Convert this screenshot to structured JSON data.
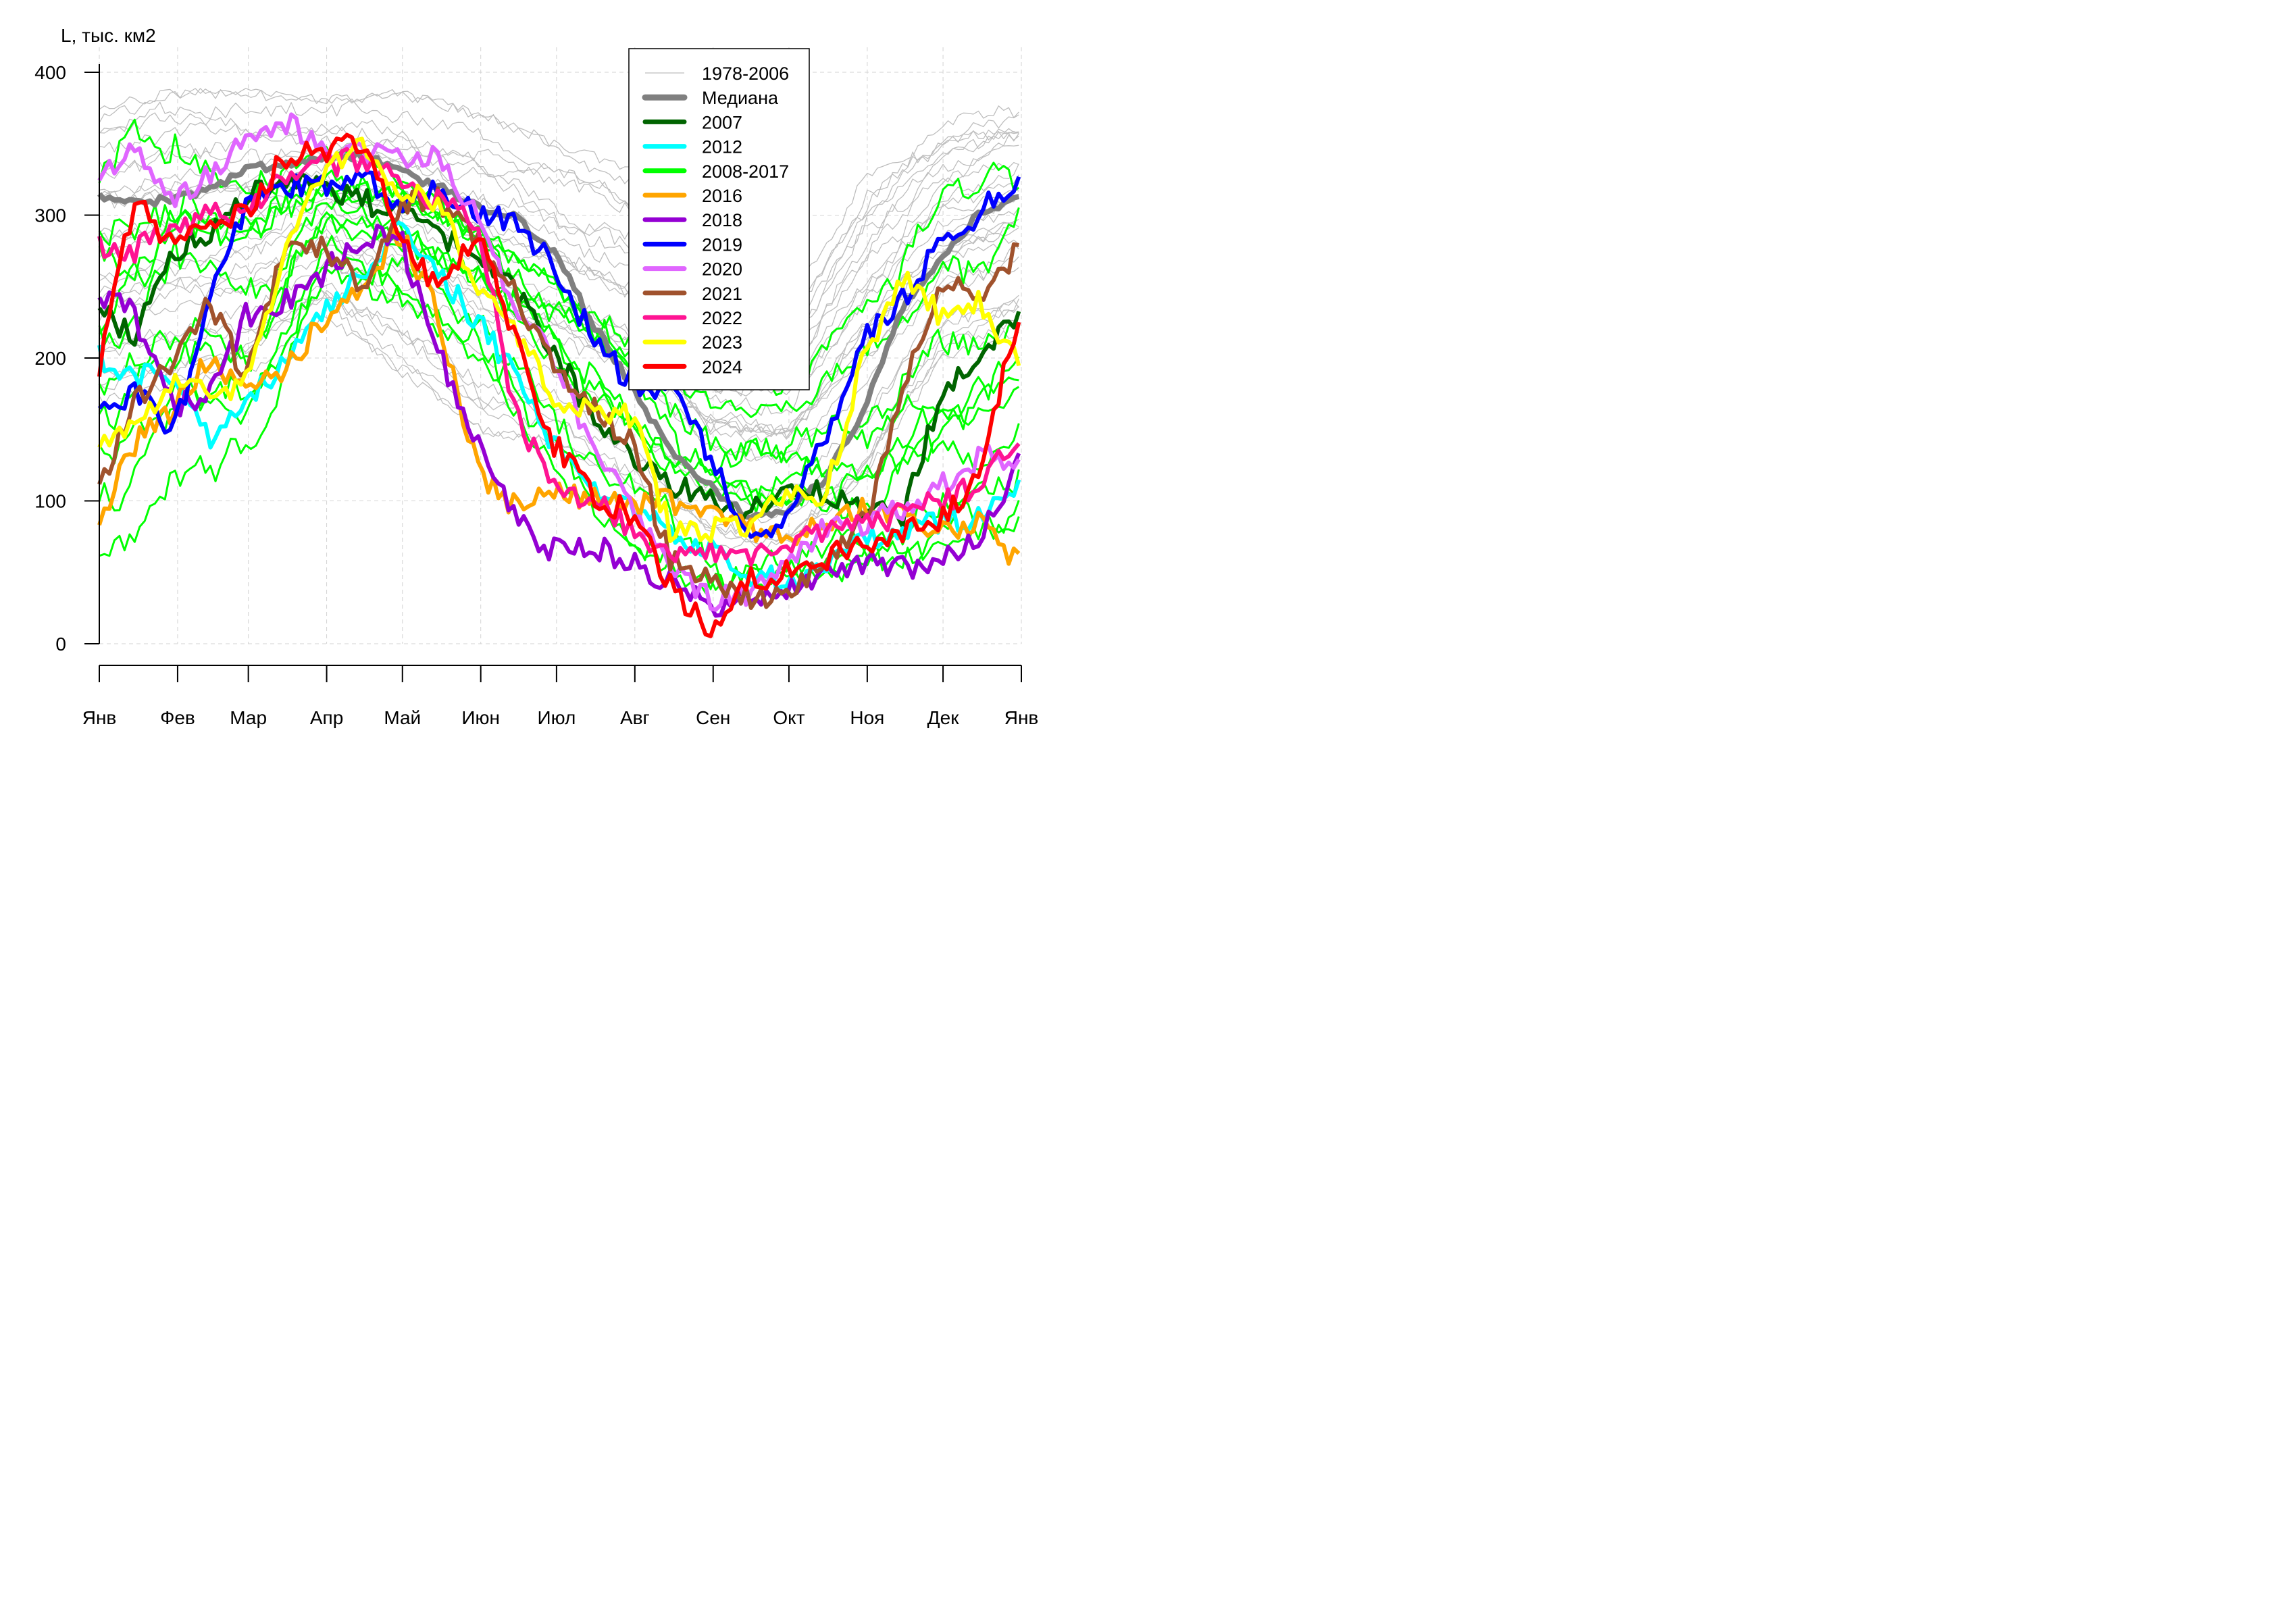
{
  "chart_data": {
    "type": "line",
    "ylabel": "L, тыс. км2",
    "ylim": [
      0,
      400
    ],
    "yticks": [
      0,
      100,
      200,
      300,
      400
    ],
    "x_tick_labels": [
      "Янв",
      "Фев",
      "Мар",
      "Апр",
      "Май",
      "Июн",
      "Июл",
      "Авг",
      "Сен",
      "Окт",
      "Ноя",
      "Дек",
      "Янв"
    ],
    "x_unit": "day of year",
    "xlim": [
      1,
      366
    ],
    "grid": true,
    "legend_position": "top-center",
    "series": [
      {
        "name": "1978-2006",
        "color": "#bebebe",
        "style": "thin",
        "x": [
          1,
          30,
          60,
          91,
          121,
          152,
          182,
          213,
          244,
          274,
          305,
          335,
          366
        ],
        "low": [
          170,
          180,
          190,
          230,
          190,
          150,
          140,
          110,
          70,
          70,
          120,
          200,
          220
        ],
        "high": [
          375,
          385,
          385,
          380,
          385,
          370,
          350,
          330,
          250,
          240,
          330,
          370,
          385
        ]
      },
      {
        "name": "Медиана",
        "color": "#808080",
        "x": [
          1,
          15,
          31,
          45,
          59,
          74,
          90,
          105,
          120,
          135,
          151,
          166,
          181,
          196,
          212,
          227,
          243,
          258,
          273,
          288,
          304,
          319,
          334,
          349,
          366
        ],
        "y": [
          312,
          308,
          312,
          318,
          332,
          336,
          340,
          342,
          330,
          320,
          305,
          298,
          275,
          225,
          180,
          135,
          110,
          88,
          92,
          115,
          165,
          235,
          270,
          300,
          312
        ]
      },
      {
        "name": "2007",
        "color": "#006400",
        "x": [
          1,
          15,
          31,
          45,
          59,
          74,
          90,
          105,
          120,
          135,
          151,
          166,
          181,
          196,
          212,
          227,
          243,
          258,
          273,
          288,
          304,
          319,
          334,
          349,
          366
        ],
        "y": [
          235,
          215,
          275,
          290,
          315,
          325,
          320,
          310,
          300,
          285,
          270,
          245,
          205,
          160,
          130,
          110,
          105,
          88,
          115,
          105,
          95,
          90,
          170,
          200,
          230
        ]
      },
      {
        "name": "2012",
        "color": "#00ffff",
        "x": [
          1,
          15,
          31,
          45,
          59,
          74,
          90,
          105,
          120,
          135,
          151,
          166,
          181,
          196,
          212,
          227,
          243,
          258,
          273,
          288,
          304,
          319,
          334,
          349,
          366
        ],
        "y": [
          200,
          190,
          180,
          140,
          165,
          200,
          230,
          260,
          290,
          260,
          225,
          185,
          140,
          110,
          95,
          80,
          65,
          50,
          45,
          55,
          70,
          80,
          85,
          90,
          110
        ]
      },
      {
        "name": "2008-2017",
        "color": "#00ff00",
        "style": "group",
        "x": [
          1,
          30,
          60,
          91,
          121,
          152,
          182,
          213,
          244,
          274,
          305,
          335,
          366
        ],
        "low": [
          55,
          100,
          110,
          260,
          240,
          200,
          120,
          65,
          35,
          45,
          50,
          70,
          85
        ],
        "high": [
          345,
          378,
          360,
          355,
          345,
          320,
          300,
          265,
          215,
          215,
          250,
          320,
          345
        ]
      },
      {
        "name": "2016",
        "color": "#ffa500",
        "x": [
          1,
          15,
          31,
          45,
          59,
          74,
          90,
          105,
          120,
          135,
          151,
          166,
          181,
          196,
          212,
          227,
          243,
          258,
          273,
          288,
          304,
          319,
          334,
          349,
          366
        ],
        "y": [
          85,
          140,
          165,
          200,
          175,
          190,
          230,
          250,
          290,
          230,
          120,
          95,
          110,
          100,
          95,
          100,
          95,
          80,
          75,
          85,
          95,
          90,
          80,
          85,
          55
        ]
      },
      {
        "name": "2018",
        "color": "#9400d3",
        "x": [
          1,
          15,
          31,
          45,
          59,
          74,
          90,
          105,
          120,
          135,
          151,
          166,
          181,
          196,
          212,
          227,
          243,
          258,
          273,
          288,
          304,
          319,
          334,
          349,
          366
        ],
        "y": [
          245,
          230,
          165,
          175,
          230,
          240,
          260,
          285,
          285,
          205,
          140,
          85,
          65,
          70,
          55,
          45,
          25,
          30,
          40,
          50,
          55,
          55,
          55,
          75,
          130
        ]
      },
      {
        "name": "2019",
        "color": "#0000ff",
        "x": [
          1,
          15,
          31,
          45,
          59,
          74,
          90,
          105,
          120,
          135,
          151,
          166,
          181,
          196,
          212,
          227,
          243,
          258,
          273,
          288,
          304,
          319,
          334,
          349,
          366
        ],
        "y": [
          160,
          175,
          150,
          240,
          305,
          320,
          320,
          325,
          310,
          320,
          300,
          295,
          265,
          215,
          180,
          180,
          130,
          70,
          90,
          145,
          215,
          240,
          280,
          300,
          330
        ]
      },
      {
        "name": "2020",
        "color": "#e066ff",
        "x": [
          1,
          15,
          31,
          45,
          59,
          74,
          90,
          105,
          120,
          135,
          151,
          166,
          181,
          196,
          212,
          227,
          243,
          258,
          273,
          288,
          304,
          319,
          334,
          349,
          366
        ],
        "y": [
          330,
          345,
          310,
          330,
          350,
          365,
          350,
          345,
          340,
          340,
          300,
          235,
          200,
          140,
          95,
          55,
          30,
          35,
          60,
          80,
          85,
          95,
          110,
          130,
          130
        ]
      },
      {
        "name": "2021",
        "color": "#a0522d",
        "x": [
          1,
          15,
          31,
          45,
          59,
          74,
          90,
          105,
          120,
          135,
          151,
          166,
          181,
          196,
          212,
          227,
          243,
          258,
          273,
          288,
          304,
          319,
          334,
          349,
          366
        ],
        "y": [
          110,
          170,
          200,
          240,
          185,
          275,
          280,
          250,
          310,
          310,
          280,
          245,
          190,
          165,
          140,
          60,
          45,
          30,
          40,
          55,
          85,
          180,
          255,
          240,
          280
        ]
      },
      {
        "name": "2022",
        "color": "#ff1493",
        "x": [
          1,
          15,
          31,
          45,
          59,
          74,
          90,
          105,
          120,
          135,
          151,
          166,
          181,
          196,
          212,
          227,
          243,
          258,
          273,
          288,
          304,
          319,
          334,
          349,
          366
        ],
        "y": [
          280,
          275,
          290,
          300,
          300,
          330,
          335,
          340,
          320,
          310,
          290,
          160,
          110,
          100,
          80,
          60,
          65,
          60,
          70,
          80,
          85,
          90,
          100,
          110,
          150
        ]
      },
      {
        "name": "2023",
        "color": "#ffff00",
        "x": [
          1,
          15,
          31,
          45,
          59,
          74,
          90,
          105,
          120,
          135,
          151,
          166,
          181,
          196,
          212,
          227,
          243,
          258,
          273,
          288,
          304,
          319,
          334,
          349,
          366
        ],
        "y": [
          135,
          150,
          190,
          170,
          185,
          270,
          335,
          345,
          320,
          310,
          250,
          220,
          175,
          160,
          160,
          80,
          80,
          80,
          110,
          105,
          200,
          255,
          230,
          240,
          195
        ]
      },
      {
        "name": "2024",
        "color": "#ff0000",
        "x": [
          1,
          15,
          31,
          45,
          59,
          74,
          90,
          105,
          120,
          135,
          151,
          166,
          181,
          196,
          212,
          227,
          243,
          258,
          273,
          288,
          304,
          319,
          334,
          349,
          366
        ],
        "y": [
          195,
          310,
          275,
          295,
          300,
          340,
          345,
          350,
          290,
          245,
          290,
          210,
          140,
          105,
          90,
          40,
          10,
          45,
          50,
          60,
          70,
          80,
          85,
          120,
          240
        ]
      }
    ]
  }
}
